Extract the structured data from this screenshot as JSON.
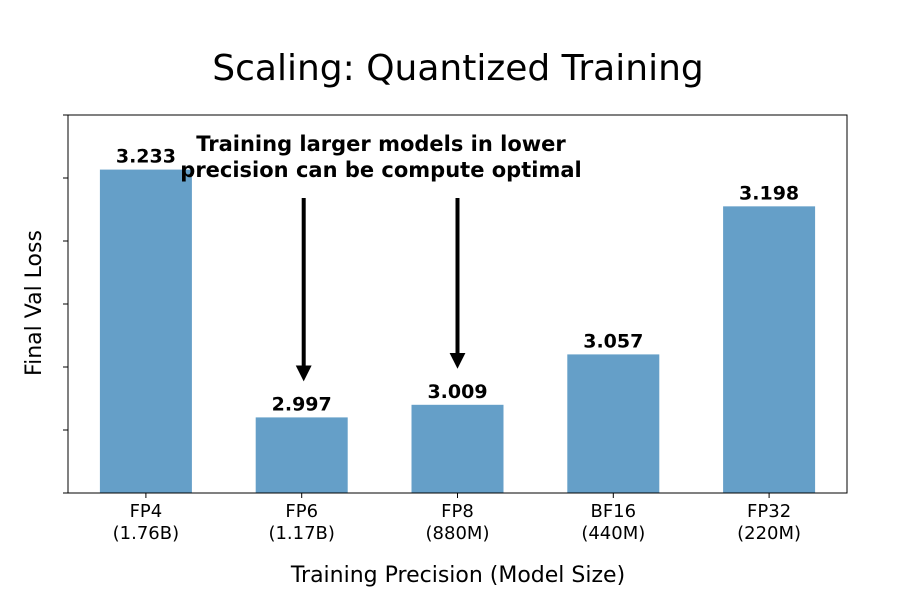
{
  "chart_data": {
    "type": "bar",
    "title": "Scaling: Quantized Training",
    "xlabel": "Training Precision (Model Size)",
    "ylabel": "Final Val Loss",
    "categories": [
      {
        "precision": "FP4",
        "size": "(1.76B)"
      },
      {
        "precision": "FP6",
        "size": "(1.17B)"
      },
      {
        "precision": "FP8",
        "size": "(880M)"
      },
      {
        "precision": "BF16",
        "size": "(440M)"
      },
      {
        "precision": "FP32",
        "size": "(220M)"
      }
    ],
    "values": [
      3.233,
      2.997,
      3.009,
      3.057,
      3.198
    ],
    "value_labels": [
      "3.233",
      "2.997",
      "3.009",
      "3.057",
      "3.198"
    ],
    "ylim": [
      2.925,
      3.285
    ],
    "y_tick_labels_shown": false,
    "grid": false,
    "bar_color": "#659fc8",
    "annotation": {
      "lines": [
        "Training larger models in lower",
        "precision can be compute optimal"
      ],
      "arrow_targets": [
        "FP6",
        "FP8"
      ]
    }
  }
}
